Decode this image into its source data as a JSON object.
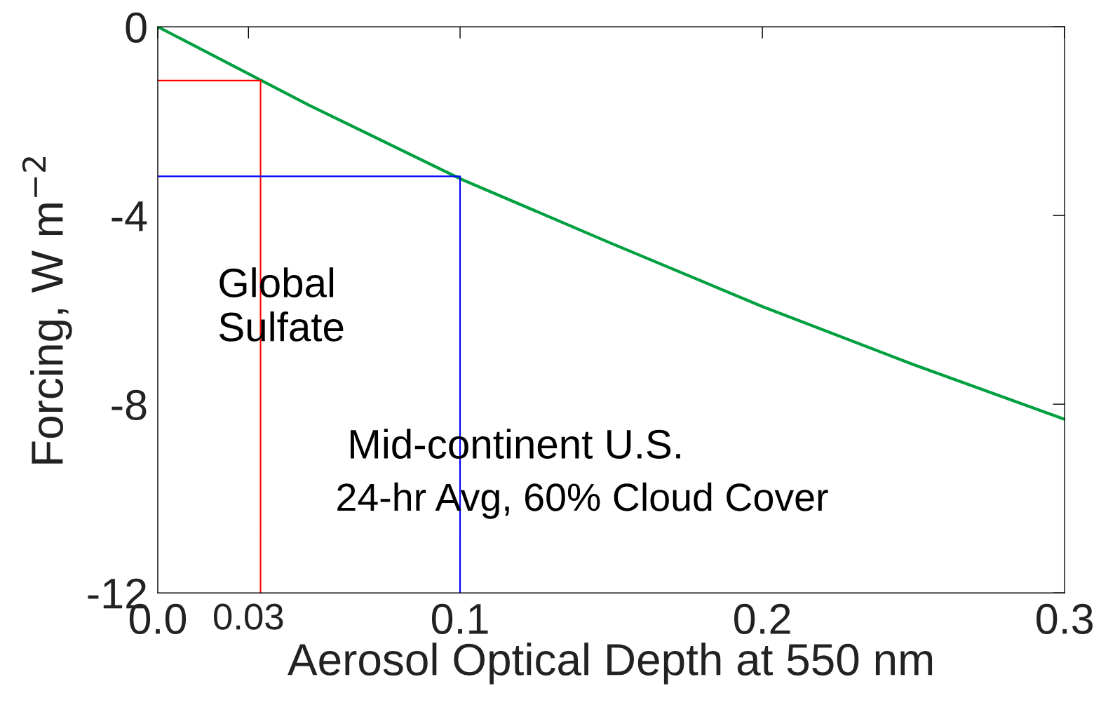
{
  "chart_data": {
    "type": "line",
    "xlabel": "Aerosol Optical Depth at 550 nm",
    "ylabel": "Forcing, W m$^{−2}$",
    "series": [
      {
        "color": "#00a040",
        "x": [
          0,
          0.05,
          0.1,
          0.15,
          0.2,
          0.25,
          0.3
        ],
        "values": [
          0,
          -1.66,
          -3.22,
          -4.59,
          -5.93,
          -7.16,
          -8.32
        ]
      },
      {
        "color": "#ff0000",
        "x": [
          0,
          0.034,
          0.034
        ],
        "values": [
          -1.14,
          -1.14,
          -12
        ]
      },
      {
        "color": "#0000ff",
        "x": [
          0,
          0.1,
          0.1
        ],
        "values": [
          -3.17,
          -3.17,
          -12
        ]
      }
    ],
    "xlim": [
      0,
      0.3
    ],
    "xticks": [
      {
        "value": 0,
        "label": "0.0"
      },
      {
        "value": 0.03,
        "label": "0.03"
      },
      0.1,
      0.2,
      0.3
    ],
    "ylim": [
      -12,
      0
    ],
    "yticks": [
      -12,
      -8,
      -4,
      0
    ],
    "annotations": [
      "Global\nSulfate",
      "Mid-continent U.S.",
      "24-hr Avg, 60% Cloud Cover"
    ],
    "grid": false
  }
}
